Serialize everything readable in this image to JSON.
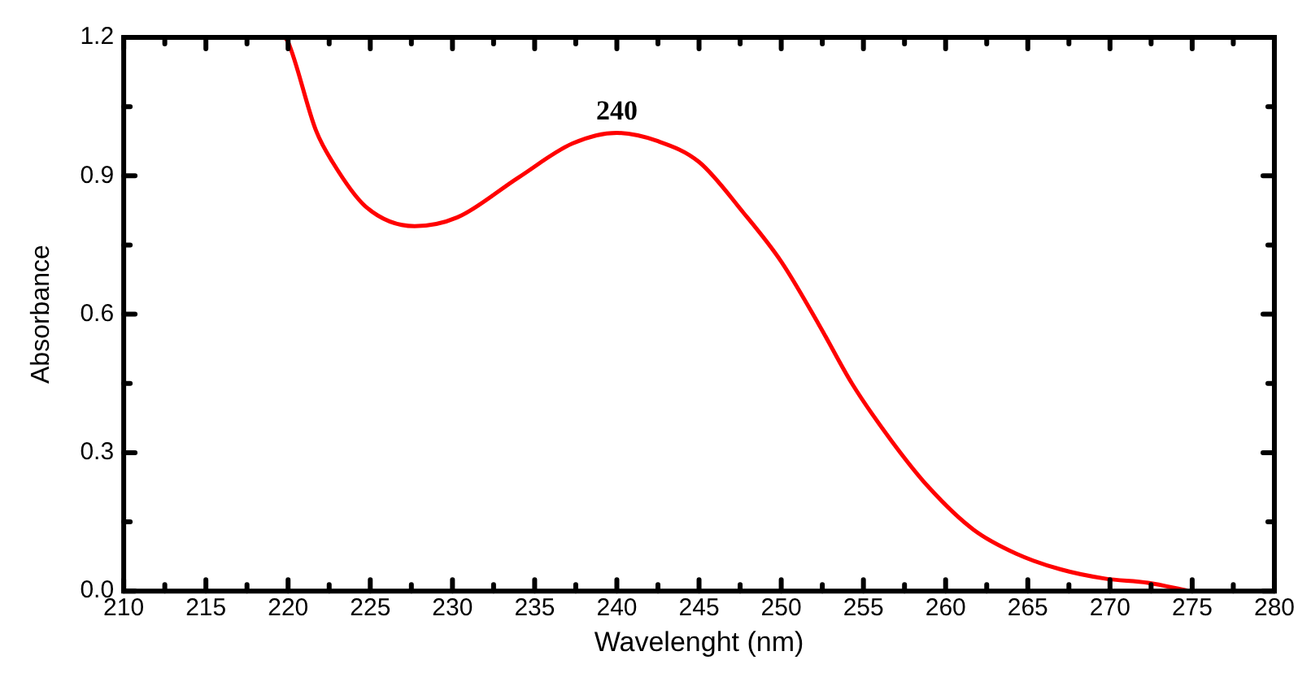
{
  "chart_data": {
    "type": "line",
    "xlabel": "Wavelenght (nm)",
    "ylabel": "Absorbance",
    "series": [
      {
        "color": "#ff0000",
        "x": [
          219.8,
          220,
          221.7,
          222.7,
          224.7,
          227.7,
          230.3,
          234,
          237.3,
          240,
          242.5,
          245,
          247.7,
          250,
          252.3,
          254.3,
          256.7,
          259,
          261.7,
          264.3,
          267,
          269.7,
          272.3,
          274.7
        ],
        "values": [
          1.2,
          1.19,
          0.998,
          0.93,
          0.834,
          0.791,
          0.81,
          0.896,
          0.97,
          0.993,
          0.975,
          0.93,
          0.82,
          0.714,
          0.577,
          0.45,
          0.326,
          0.224,
          0.133,
          0.081,
          0.047,
          0.027,
          0.018,
          0.001
        ]
      }
    ],
    "xlim": [
      210,
      280
    ],
    "xticks": [
      210,
      215,
      220,
      225,
      230,
      235,
      240,
      245,
      250,
      255,
      260,
      265,
      270,
      275,
      280
    ],
    "ylim": [
      0,
      1.2
    ],
    "yticks": [
      {
        "value": 0,
        "label": "0.0"
      },
      0.3,
      0.6,
      0.9,
      1.2
    ],
    "annotations": [
      {
        "text": "240",
        "x": 240,
        "y": 0.993
      }
    ],
    "grid": false,
    "legend": false,
    "marker": "none",
    "line_style": "solid"
  }
}
